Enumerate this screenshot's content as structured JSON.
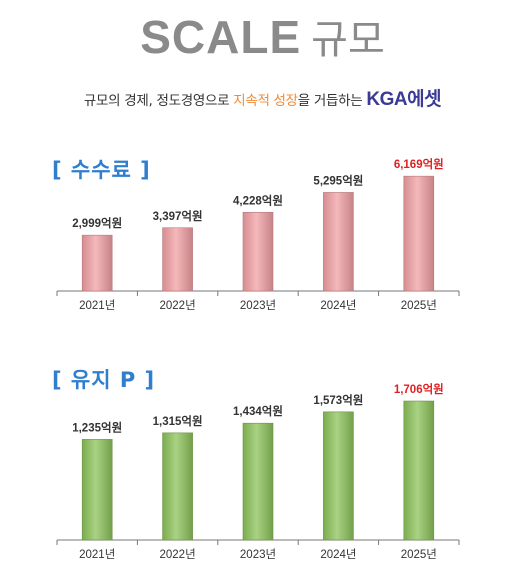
{
  "header": {
    "title_main": "SCALE",
    "title_sub": "규모",
    "subtitle_prefix": "규모의 경제, 정도경영으로 ",
    "subtitle_highlight": "지속적 성장",
    "subtitle_middle": "을 거듭하는 ",
    "subtitle_brand": "KGA에셋"
  },
  "colors": {
    "title": "#8a8a8a",
    "section_label": "#2f7fcf",
    "highlight": "#f28a35",
    "brand": "#3b3b95",
    "latest_value": "#e02020",
    "fee_bar": "#f2a0a4",
    "retention_bar": "#8cc35a"
  },
  "chart_data": [
    {
      "type": "bar",
      "title": "[ 수수료 ]",
      "categories": [
        "2021년",
        "2022년",
        "2023년",
        "2024년",
        "2025년"
      ],
      "values": [
        2999,
        3397,
        4228,
        5295,
        6169
      ],
      "value_labels": [
        "2,999억원",
        "3,397억원",
        "4,228억원",
        "5,295억원",
        "6,169억원"
      ],
      "unit": "억원",
      "ylim": [
        0,
        6500
      ],
      "grid": false,
      "bar_color": "#f2a0a4",
      "highlight_last": true
    },
    {
      "type": "bar",
      "title": "[ 유지 P ]",
      "categories": [
        "2021년",
        "2022년",
        "2023년",
        "2024년",
        "2025년"
      ],
      "values": [
        1235,
        1315,
        1434,
        1573,
        1706
      ],
      "value_labels": [
        "1,235억원",
        "1,315억원",
        "1,434억원",
        "1,573억원",
        "1,706억원"
      ],
      "unit": "억원",
      "ylim": [
        0,
        1780
      ],
      "grid": false,
      "bar_color": "#8cc35a",
      "highlight_last": true
    }
  ]
}
